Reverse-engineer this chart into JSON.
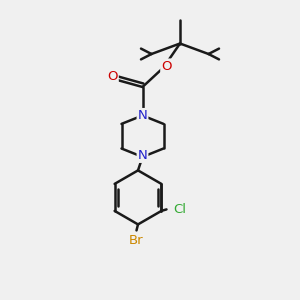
{
  "background_color": "#f0f0f0",
  "bond_color": "#1a1a1a",
  "atom_colors": {
    "N": "#2020cc",
    "O": "#cc0000",
    "Br": "#cc8800",
    "Cl": "#33aa33",
    "C": "#1a1a1a"
  },
  "figsize": [
    3.0,
    3.0
  ],
  "dpi": 100
}
